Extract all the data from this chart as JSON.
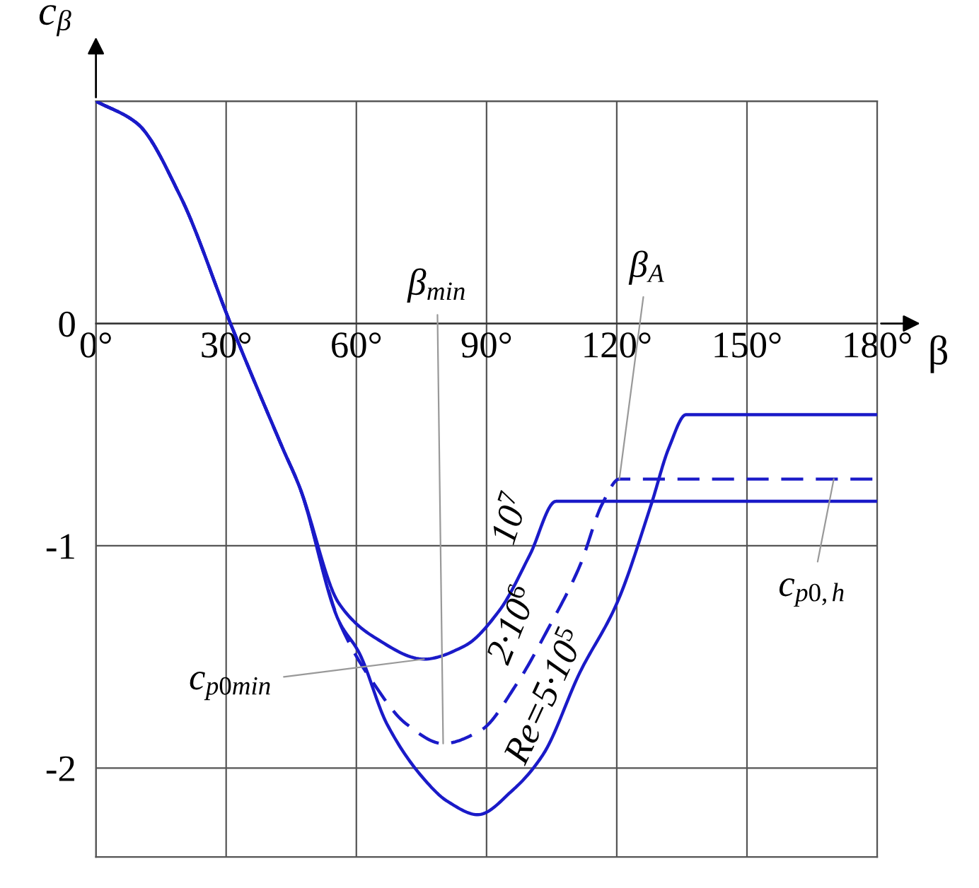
{
  "chart_data": {
    "type": "line",
    "xlabel": "β",
    "ylabel": "c$_{β}$",
    "xlim": [
      0,
      180
    ],
    "ylim": [
      -2.4,
      1
    ],
    "xticks": [
      {
        "value": 0,
        "label": "0°"
      },
      {
        "value": 30,
        "label": "30°"
      },
      {
        "value": 60,
        "label": "60°"
      },
      {
        "value": 90,
        "label": "90°"
      },
      {
        "value": 120,
        "label": "120°"
      },
      {
        "value": 150,
        "label": "150°"
      },
      {
        "value": 180,
        "label": "180°"
      }
    ],
    "yticks": [
      -2,
      -1,
      0,
      {
        "value": 1,
        "label": null
      }
    ],
    "grid": true,
    "marker": "none",
    "series": [
      {
        "name": "10$^{7}$",
        "color": "#1a1ac8",
        "line_style": "solid",
        "x": [
          0,
          9.5,
          19.5,
          31,
          43,
          47,
          56,
          64,
          75.6,
          85,
          93,
          100,
          106,
          180
        ],
        "values": [
          1.0,
          0.9,
          0.57,
          0,
          -0.56,
          -0.74,
          -1.26,
          -1.41,
          -1.51,
          -1.45,
          -1.29,
          -1.04,
          -0.8,
          -0.8
        ]
      },
      {
        "name": "2·10$^{6}$",
        "color": "#1a1ac8",
        "line_style": "dashed",
        "x": [
          0,
          9.5,
          19.5,
          31,
          43,
          47,
          56,
          64,
          71.4,
          80,
          88.7,
          97,
          104,
          111.5,
          116.7,
          120.6,
          180
        ],
        "values": [
          1.0,
          0.9,
          0.57,
          0,
          -0.56,
          -0.74,
          -1.34,
          -1.62,
          -1.8,
          -1.89,
          -1.83,
          -1.62,
          -1.38,
          -1.09,
          -0.81,
          -0.7,
          -0.7
        ]
      },
      {
        "name": "Re=5·10$^{5}$",
        "color": "#1a1ac8",
        "line_style": "solid",
        "x": [
          0,
          9.5,
          19.5,
          31,
          43,
          47,
          56,
          60.6,
          67,
          75.6,
          81,
          88,
          96,
          103,
          111.5,
          120,
          128,
          132,
          136,
          180
        ],
        "values": [
          1.0,
          0.9,
          0.57,
          0,
          -0.56,
          -0.74,
          -1.34,
          -1.48,
          -1.8,
          -2.05,
          -2.15,
          -2.21,
          -2.1,
          -1.94,
          -1.57,
          -1.26,
          -0.81,
          -0.56,
          -0.41,
          -0.41
        ]
      }
    ],
    "annotations": [
      {
        "text": "β$_{min}$",
        "x": 80,
        "y": -1.89
      },
      {
        "text": "β$_{A}$",
        "x": 120.6,
        "y": -0.7
      },
      {
        "text": "c$_{p0min}$",
        "x": 75.6,
        "y": -1.51
      },
      {
        "text": "c$_{p0,h}$",
        "x": 170,
        "y": -0.7
      }
    ]
  }
}
